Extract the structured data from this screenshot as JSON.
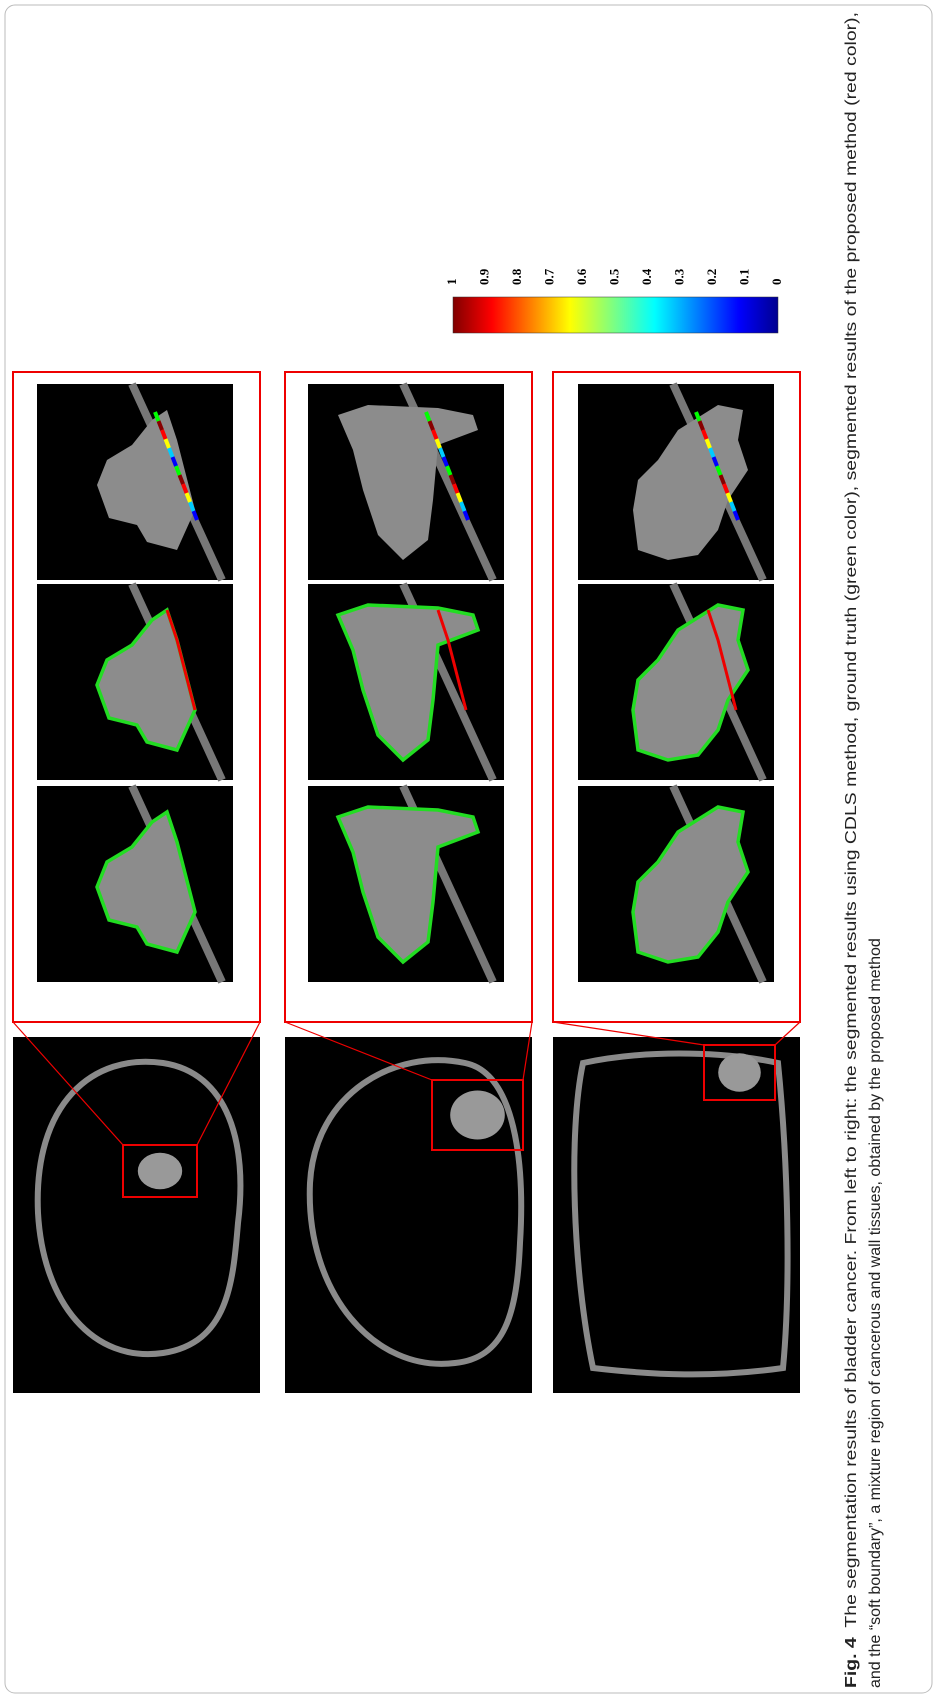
{
  "figure": {
    "label": "Fig. 4",
    "caption": [
      "The segmentation results of bladder cancer. From left to right: the segmented results using CDLS method, ground truth (green color), segmented results of the proposed method (red color),",
      "and the “soft boundary”, a mixture region of cancerous and wall tissues, obtained by the proposed method"
    ]
  },
  "colorbar": {
    "ticks": [
      1,
      0.9,
      0.8,
      0.7,
      0.6,
      0.5,
      0.4,
      0.3,
      0.2,
      0.1,
      0
    ]
  }
}
